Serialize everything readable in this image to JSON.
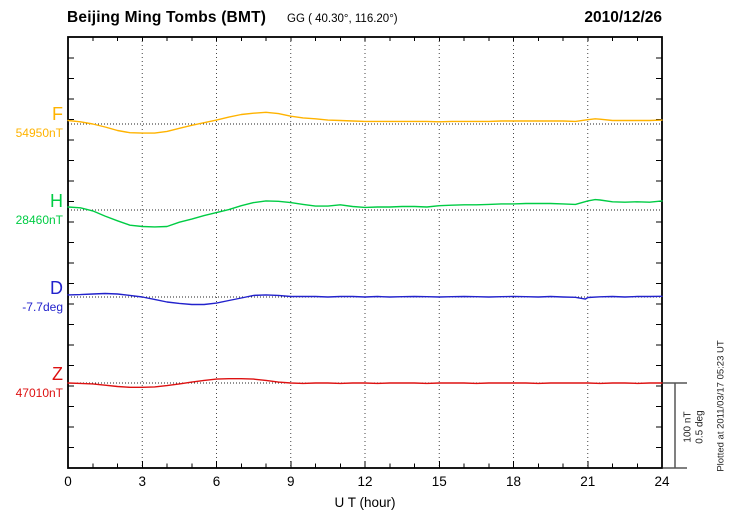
{
  "header": {
    "station_title": "Beijing Ming Tombs (BMT)",
    "coords": "GG ( 40.30°, 116.20°)",
    "date": "2010/12/26"
  },
  "scale_bar": {
    "line1": "100 nT",
    "line2": "0.5 deg"
  },
  "footer_note": "Plotted at 2011/03/17 05:23 UT",
  "chart_data": {
    "type": "line",
    "title": "Beijing Ming Tombs (BMT) magnetogram 2010/12/26",
    "xlabel": "U T (hour)",
    "xlim": [
      0,
      24
    ],
    "x_major_ticks": [
      0,
      3,
      6,
      9,
      12,
      15,
      18,
      21,
      24
    ],
    "x_minor_step_hours": 1,
    "grid": "vertical dotted lines every 3 hours; dotted horizontal baseline through each trace",
    "legend_position": "left margin labels",
    "scale": {
      "nT_per_division": 100,
      "deg_per_division": 0.5
    },
    "series": [
      {
        "id": "F",
        "label": "F",
        "value_label": "54950nT",
        "base": 54950,
        "unit": "nT",
        "color": "#FFB300",
        "x": [
          0,
          0.5,
          1,
          1.5,
          2,
          2.5,
          3,
          3.5,
          4,
          4.5,
          5,
          5.5,
          6,
          6.5,
          7,
          7.5,
          8,
          8.5,
          9,
          9.5,
          10,
          10.5,
          11,
          11.5,
          12,
          12.5,
          13,
          13.5,
          14,
          14.5,
          15,
          15.5,
          16,
          16.5,
          17,
          17.5,
          18,
          18.5,
          19,
          19.5,
          20,
          20.5,
          21,
          21.3,
          21.5,
          22,
          22.5,
          23,
          23.5,
          24
        ],
        "values": [
          54954,
          54952.5,
          54950,
          54946.5,
          54942.5,
          54940,
          54939.5,
          54939.5,
          54941.5,
          54945,
          54948.5,
          54951.5,
          54954.5,
          54958,
          54961,
          54962.5,
          54963.5,
          54962,
          54959,
          54957,
          54956,
          54954.5,
          54954,
          54953.5,
          54953,
          54953,
          54953,
          54953,
          54953,
          54953,
          54952.5,
          54953,
          54953,
          54953,
          54953,
          54953.5,
          54953.5,
          54953.5,
          54953.5,
          54953.5,
          54953.5,
          54953,
          54955,
          54956,
          54955.5,
          54954,
          54954,
          54954,
          54954,
          54954.5
        ]
      },
      {
        "id": "H",
        "label": "H",
        "value_label": "28460nT",
        "base": 28460,
        "unit": "nT",
        "color": "#00CC44",
        "x": [
          0,
          0.5,
          1,
          1.5,
          2,
          2.5,
          3,
          3.5,
          4,
          4.5,
          5,
          5.5,
          6,
          6.5,
          7,
          7.5,
          8,
          8.5,
          9,
          9.5,
          10,
          10.5,
          11,
          11.5,
          12,
          12.5,
          13,
          13.5,
          14,
          14.5,
          15,
          15.5,
          16,
          16.5,
          17,
          17.5,
          18,
          18.5,
          19,
          19.5,
          20,
          20.5,
          21,
          21.3,
          21.5,
          22,
          22.5,
          23,
          23.5,
          24
        ],
        "values": [
          28463.5,
          28462.5,
          28459,
          28453,
          28447.5,
          28442.5,
          28441,
          28440.5,
          28441,
          28446,
          28449.5,
          28453.5,
          28457,
          28460.5,
          28465,
          28468.5,
          28470.5,
          28470,
          28468.5,
          28466.5,
          28464.5,
          28464.5,
          28466,
          28464,
          28463,
          28463.5,
          28463.5,
          28464,
          28464,
          28463.5,
          28465,
          28465.5,
          28466,
          28466,
          28466.5,
          28467,
          28467,
          28467.5,
          28467.5,
          28467.5,
          28467,
          28466.5,
          28470.5,
          28472,
          28471.5,
          28469.5,
          28469,
          28469.5,
          28469,
          28470.5
        ]
      },
      {
        "id": "D",
        "label": "D",
        "value_label": "-7.7deg",
        "base": -7.7,
        "unit": "deg",
        "color": "#2222CC",
        "x": [
          0,
          0.5,
          1,
          1.5,
          2,
          2.5,
          3,
          3.5,
          4,
          4.5,
          5,
          5.5,
          6,
          6.5,
          7,
          7.5,
          8,
          8.5,
          9,
          9.5,
          10,
          10.5,
          11,
          11.5,
          12,
          12.5,
          13,
          13.5,
          14,
          14.5,
          15,
          15.5,
          16,
          16.5,
          17,
          17.5,
          18,
          18.5,
          19,
          19.5,
          20,
          20.5,
          20.9,
          21,
          21.5,
          22,
          22.5,
          23,
          23.5,
          24
        ],
        "values": [
          -7.688,
          -7.686,
          -7.683,
          -7.68,
          -7.683,
          -7.691,
          -7.7,
          -7.714,
          -7.729,
          -7.737,
          -7.743,
          -7.743,
          -7.735,
          -7.72,
          -7.706,
          -7.691,
          -7.688,
          -7.691,
          -7.697,
          -7.697,
          -7.697,
          -7.7,
          -7.697,
          -7.697,
          -7.7,
          -7.697,
          -7.7,
          -7.698,
          -7.697,
          -7.698,
          -7.7,
          -7.698,
          -7.697,
          -7.698,
          -7.7,
          -7.698,
          -7.697,
          -7.698,
          -7.7,
          -7.697,
          -7.7,
          -7.702,
          -7.712,
          -7.703,
          -7.699,
          -7.697,
          -7.7,
          -7.697,
          -7.697,
          -7.696
        ]
      },
      {
        "id": "Z",
        "label": "Z",
        "value_label": "47010nT",
        "base": 47010,
        "unit": "nT",
        "color": "#DD1111",
        "x": [
          0,
          0.5,
          1,
          1.5,
          2,
          2.5,
          3,
          3.5,
          4,
          4.5,
          5,
          5.5,
          6,
          6.5,
          7,
          7.5,
          8,
          8.5,
          9,
          9.5,
          10,
          10.5,
          11,
          11.5,
          12,
          12.5,
          13,
          13.5,
          14,
          14.5,
          15,
          15.5,
          16,
          16.5,
          17,
          17.5,
          18,
          18.5,
          19,
          19.5,
          20,
          20.5,
          21,
          21.5,
          22,
          22.5,
          23,
          23.5,
          24
        ],
        "values": [
          47010,
          47009.5,
          47009,
          47007.5,
          47006,
          47005,
          47005,
          47005.5,
          47007,
          47009,
          47011,
          47013,
          47014.5,
          47015,
          47015,
          47014.5,
          47013,
          47011,
          47010,
          47009.5,
          47010,
          47010,
          47009.5,
          47010,
          47010,
          47009.5,
          47010,
          47010,
          47010,
          47009.5,
          47010,
          47010,
          47010,
          47009.5,
          47010,
          47010,
          47010,
          47010,
          47009.5,
          47010,
          47010,
          47010,
          47010,
          47009.5,
          47010,
          47010,
          47009.5,
          47010,
          47010
        ]
      }
    ]
  }
}
